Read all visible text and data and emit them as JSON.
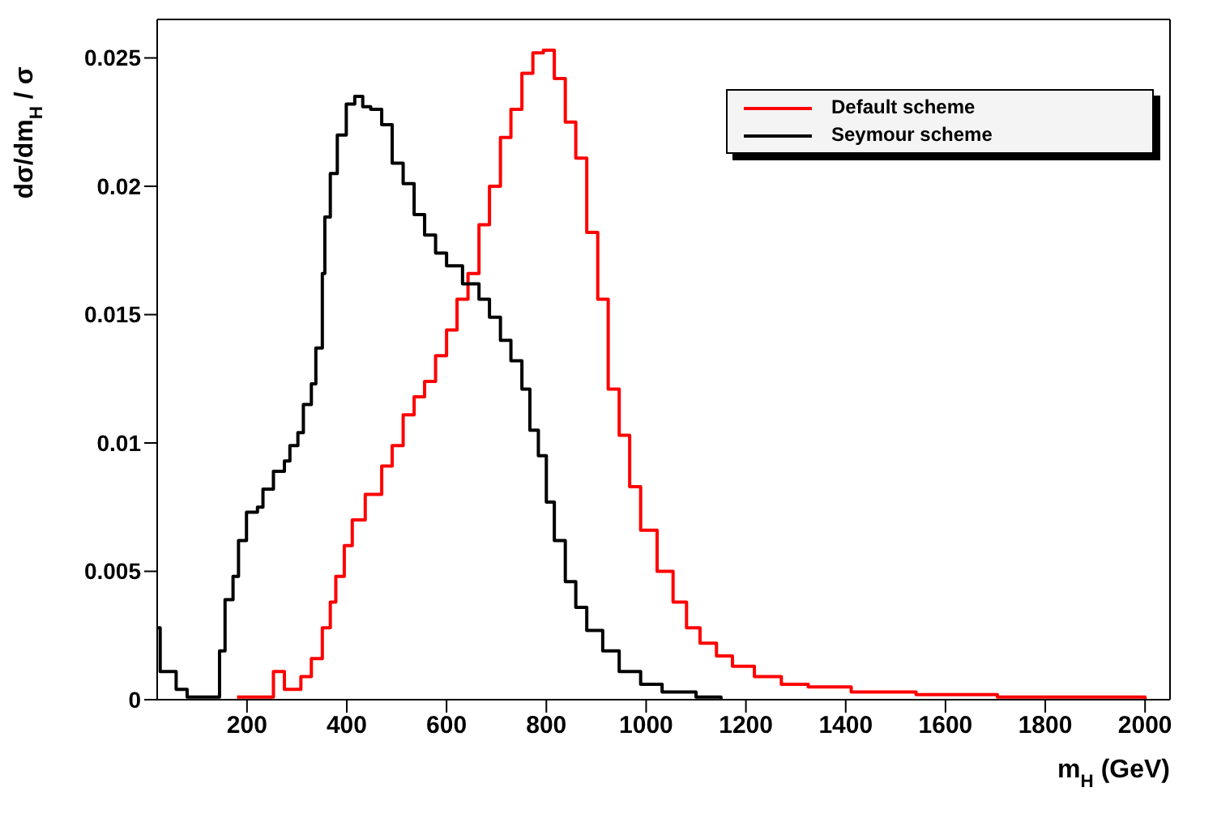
{
  "chart_data": {
    "type": "step",
    "xlabel": "m$_{H}$ (GeV)",
    "ylabel": "dσ/dm$_{H}$ / σ",
    "xlim": [
      20,
      2050
    ],
    "ylim": [
      0,
      0.0265
    ],
    "xticks": [
      200,
      400,
      600,
      800,
      1000,
      1200,
      1400,
      1600,
      1800,
      2000
    ],
    "yticks": [
      0,
      0.005,
      0.01,
      0.015,
      0.02,
      0.025
    ],
    "legend": "top right",
    "marker": "none",
    "line_style": "solid",
    "series": [
      {
        "name": "Default scheme",
        "color": "#ff0000",
        "x": [
          180,
          253,
          275,
          308,
          329,
          351,
          367,
          378,
          395,
          411,
          437,
          470,
          491,
          513,
          535,
          556,
          578,
          600,
          621,
          643,
          665,
          686,
          708,
          729,
          751,
          773,
          794,
          816,
          838,
          859,
          881,
          903,
          924,
          946,
          967,
          989,
          1011,
          1022,
          1054,
          1081,
          1108,
          1141,
          1173,
          1217,
          1271,
          1325,
          1411,
          1541,
          1704,
          1900,
          2000
        ],
        "values": [
          0.0001,
          0.0011,
          0.0004,
          0.0009,
          0.0016,
          0.0028,
          0.0038,
          0.0048,
          0.006,
          0.007,
          0.008,
          0.0091,
          0.0099,
          0.0111,
          0.0118,
          0.0124,
          0.0134,
          0.0144,
          0.0156,
          0.0166,
          0.0185,
          0.02,
          0.0219,
          0.023,
          0.0244,
          0.0252,
          0.0253,
          0.0242,
          0.0225,
          0.0211,
          0.0182,
          0.0156,
          0.0121,
          0.0103,
          0.0083,
          0.0066,
          0.0066,
          0.005,
          0.0038,
          0.0028,
          0.0022,
          0.0017,
          0.0013,
          0.0009,
          0.0006,
          0.0005,
          0.0003,
          0.0002,
          0.0001,
          0.0001,
          0
        ]
      },
      {
        "name": "Seymour scheme",
        "color": "#000000",
        "x": [
          20,
          26,
          58,
          80,
          134,
          145,
          156,
          172,
          183,
          199,
          221,
          232,
          253,
          275,
          286,
          302,
          313,
          329,
          338,
          351,
          356,
          367,
          381,
          399,
          416,
          432,
          448,
          470,
          491,
          513,
          535,
          556,
          578,
          600,
          632,
          665,
          686,
          708,
          729,
          751,
          767,
          784,
          800,
          816,
          838,
          859,
          881,
          913,
          946,
          989,
          1032,
          1100,
          1150
        ],
        "values": [
          0.0028,
          0.0011,
          0.0004,
          0.0001,
          0.0001,
          0.0019,
          0.0039,
          0.0048,
          0.0062,
          0.0073,
          0.0075,
          0.0082,
          0.0089,
          0.0093,
          0.0099,
          0.0104,
          0.0115,
          0.0123,
          0.0137,
          0.0166,
          0.0188,
          0.0205,
          0.022,
          0.0232,
          0.0235,
          0.0231,
          0.023,
          0.0224,
          0.0209,
          0.0201,
          0.0189,
          0.0181,
          0.0174,
          0.0169,
          0.0162,
          0.0156,
          0.0149,
          0.014,
          0.0132,
          0.0121,
          0.0105,
          0.0095,
          0.0077,
          0.0062,
          0.0046,
          0.0036,
          0.0027,
          0.0019,
          0.0011,
          0.0006,
          0.0003,
          0.0001,
          0
        ]
      }
    ]
  }
}
